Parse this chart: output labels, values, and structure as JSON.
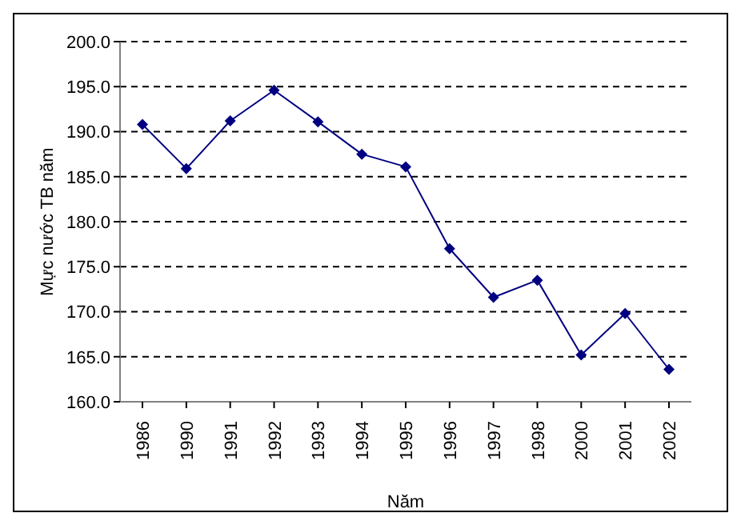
{
  "chart_data": {
    "type": "line",
    "xlabel": "Năm",
    "ylabel": "Mực nước TB năm",
    "categories": [
      "1986",
      "1990",
      "1991",
      "1992",
      "1993",
      "1994",
      "1995",
      "1996",
      "1997",
      "1998",
      "2000",
      "2001",
      "2002"
    ],
    "series": [
      {
        "color": "#000080",
        "values": [
          190.8,
          185.9,
          191.2,
          194.6,
          191.1,
          187.5,
          186.1,
          177.0,
          171.6,
          173.5,
          165.2,
          169.8,
          163.6
        ]
      }
    ],
    "ylim": [
      160,
      200
    ],
    "yticks": [
      {
        "value": 160,
        "label": "160.0"
      },
      {
        "value": 165,
        "label": "165.0"
      },
      {
        "value": 170,
        "label": "170.0"
      },
      {
        "value": 175,
        "label": "175.0"
      },
      {
        "value": 180,
        "label": "180.0"
      },
      {
        "value": 185,
        "label": "185.0"
      },
      {
        "value": 190,
        "label": "190.0"
      },
      {
        "value": 195,
        "label": "195.0"
      },
      {
        "value": 200,
        "label": "200.0"
      }
    ],
    "grid": "y",
    "marker": "diamond",
    "line_style": "solid",
    "legend": false
  }
}
